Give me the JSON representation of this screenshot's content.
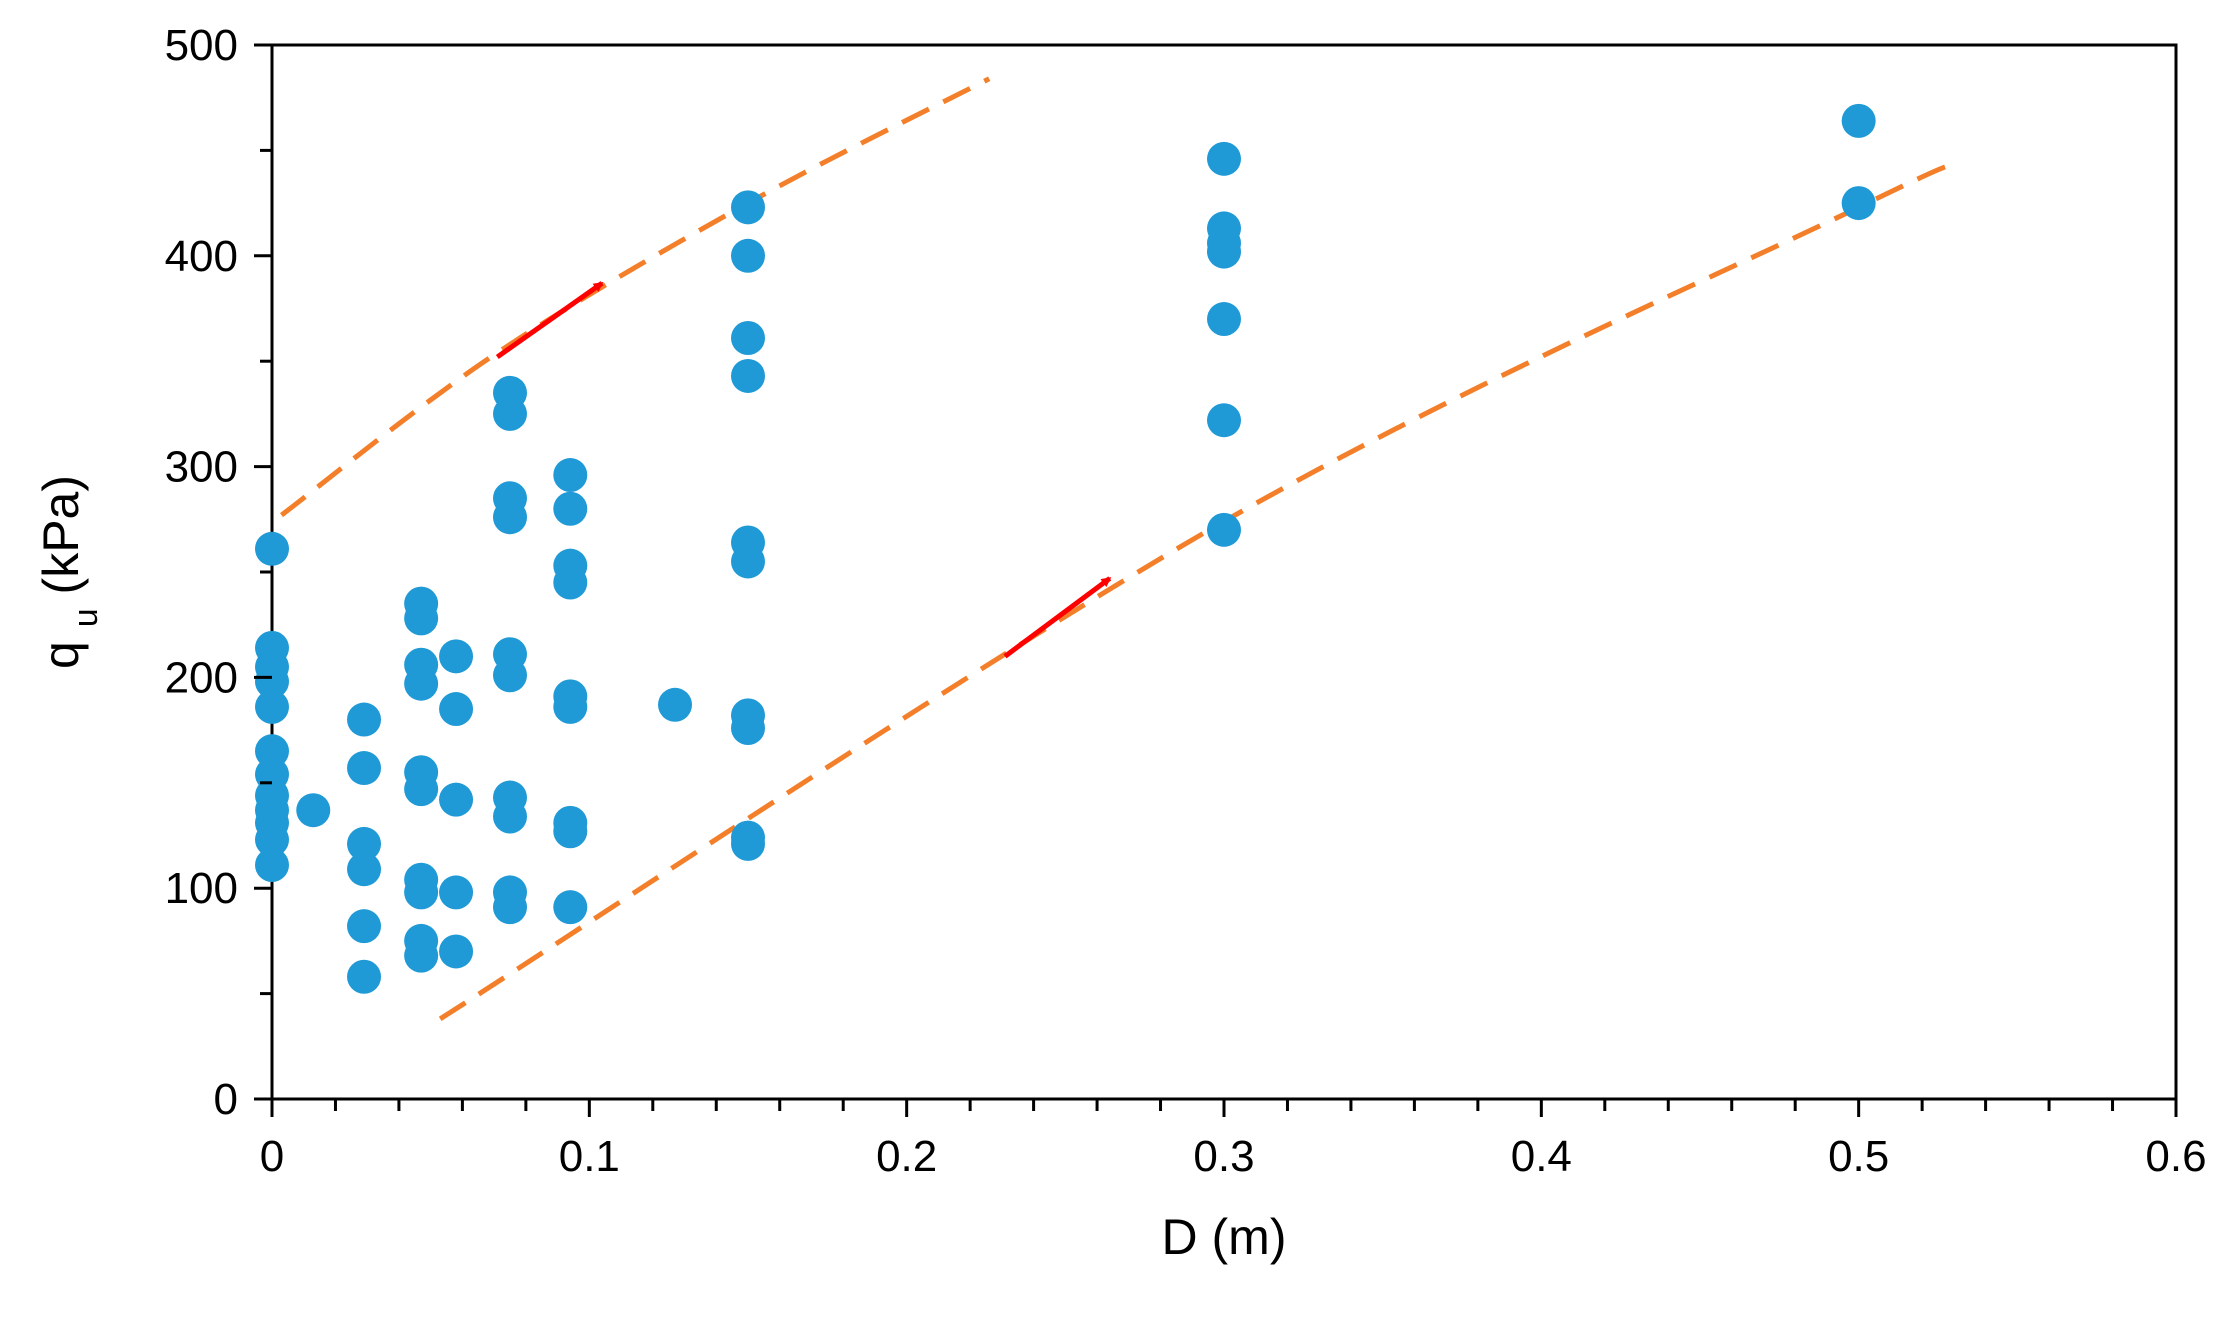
{
  "chart_data": {
    "type": "scatter",
    "title": "",
    "xlabel": "D (m)",
    "ylabel": {
      "main": "q",
      "sub": "u",
      "unit": " (kPa)"
    },
    "xlim": [
      0,
      0.6
    ],
    "ylim": [
      0,
      500
    ],
    "x_ticks": [
      0,
      0.1,
      0.2,
      0.3,
      0.4,
      0.5,
      0.6
    ],
    "x_tick_labels": [
      "0",
      "0.1",
      "0.2",
      "0.3",
      "0.4",
      "0.5",
      "0.6"
    ],
    "x_minor_step": 0.02,
    "y_ticks": [
      0,
      100,
      200,
      300,
      400,
      500
    ],
    "y_tick_labels": [
      "0",
      "100",
      "200",
      "300",
      "400",
      "500"
    ],
    "y_minor_step": 50,
    "grid": false,
    "colors": {
      "points": "#1f9ad6",
      "bounds": "#f47f2a",
      "arrows": "#ff0000",
      "axis": "#000000"
    },
    "series": [
      {
        "name": "measured",
        "points": [
          [
            0,
            261
          ],
          [
            0,
            214
          ],
          [
            0,
            205
          ],
          [
            0,
            198
          ],
          [
            0,
            186
          ],
          [
            0,
            165
          ],
          [
            0,
            154
          ],
          [
            0,
            144
          ],
          [
            0,
            137
          ],
          [
            0,
            131
          ],
          [
            0,
            123
          ],
          [
            0,
            111
          ],
          [
            0.013,
            137
          ],
          [
            0.029,
            180
          ],
          [
            0.029,
            157
          ],
          [
            0.029,
            121
          ],
          [
            0.029,
            109
          ],
          [
            0.029,
            82
          ],
          [
            0.029,
            58
          ],
          [
            0.047,
            235
          ],
          [
            0.047,
            228
          ],
          [
            0.047,
            206
          ],
          [
            0.047,
            197
          ],
          [
            0.047,
            155
          ],
          [
            0.047,
            147
          ],
          [
            0.047,
            104
          ],
          [
            0.047,
            98
          ],
          [
            0.047,
            75
          ],
          [
            0.047,
            68
          ],
          [
            0.058,
            210
          ],
          [
            0.058,
            185
          ],
          [
            0.058,
            142
          ],
          [
            0.058,
            98
          ],
          [
            0.058,
            70
          ],
          [
            0.075,
            335
          ],
          [
            0.075,
            325
          ],
          [
            0.075,
            285
          ],
          [
            0.075,
            276
          ],
          [
            0.075,
            211
          ],
          [
            0.075,
            201
          ],
          [
            0.075,
            143
          ],
          [
            0.075,
            134
          ],
          [
            0.075,
            98
          ],
          [
            0.075,
            91
          ],
          [
            0.094,
            296
          ],
          [
            0.094,
            280
          ],
          [
            0.094,
            253
          ],
          [
            0.094,
            245
          ],
          [
            0.094,
            191
          ],
          [
            0.094,
            186
          ],
          [
            0.094,
            131
          ],
          [
            0.094,
            127
          ],
          [
            0.094,
            91
          ],
          [
            0.127,
            187
          ],
          [
            0.15,
            423
          ],
          [
            0.15,
            400
          ],
          [
            0.15,
            361
          ],
          [
            0.15,
            343
          ],
          [
            0.15,
            264
          ],
          [
            0.15,
            255
          ],
          [
            0.15,
            182
          ],
          [
            0.15,
            176
          ],
          [
            0.15,
            124
          ],
          [
            0.15,
            121
          ],
          [
            0.3,
            446
          ],
          [
            0.3,
            413
          ],
          [
            0.3,
            406
          ],
          [
            0.3,
            402
          ],
          [
            0.3,
            370
          ],
          [
            0.3,
            322
          ],
          [
            0.3,
            270
          ],
          [
            0.5,
            464
          ],
          [
            0.5,
            425
          ]
        ]
      }
    ],
    "bounds": [
      {
        "name": "upper bound",
        "style": "dashed",
        "points": [
          [
            0.003,
            277
          ],
          [
            0.07,
            353
          ],
          [
            0.15,
            425
          ],
          [
            0.226,
            484
          ]
        ]
      },
      {
        "name": "lower bound",
        "style": "dashed",
        "points": [
          [
            0.053,
            38
          ],
          [
            0.3,
            274
          ],
          [
            0.5,
            423
          ],
          [
            0.53,
            443
          ]
        ]
      }
    ],
    "annotations": [
      {
        "type": "arrow",
        "from": [
          0.071,
          352
        ],
        "to": [
          0.104,
          387
        ]
      },
      {
        "type": "arrow",
        "from": [
          0.231,
          210
        ],
        "to": [
          0.264,
          247
        ]
      }
    ]
  }
}
